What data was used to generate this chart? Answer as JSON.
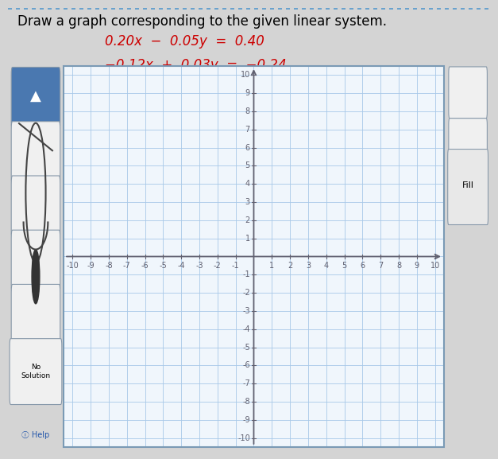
{
  "title": "Draw a graph corresponding to the given linear system.",
  "eq1_text": "0.20x  −  0.05y  =  0.40",
  "eq2_text": "−0.12x  +  0.03y  =  −0.24",
  "eq_color": "#cc0000",
  "xlim": [
    -10.5,
    10.5
  ],
  "ylim": [
    -10.5,
    10.5
  ],
  "grid_color": "#a8c8e8",
  "axis_color": "#606070",
  "plot_bg": "#f0f6fc",
  "fig_bg": "#d4d4d4",
  "title_bg": "#ffffff",
  "title_fontsize": 12,
  "eq_fontsize": 12,
  "tick_fontsize": 7
}
